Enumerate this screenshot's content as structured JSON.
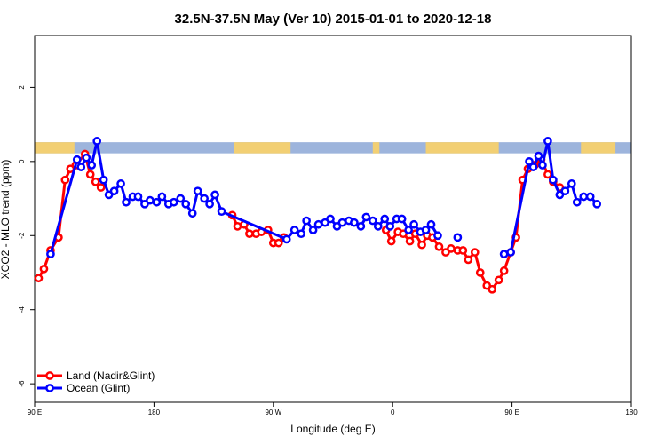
{
  "chart_data": {
    "type": "line",
    "title": "32.5N-37.5N May (Ver 10)   2015-01-01 to 2020-12-18",
    "xlabel": "Longitude (deg E)",
    "ylabel": "XCO2 - MLO trend (ppm)",
    "xlim": [
      90,
      540
    ],
    "ylim": [
      -6.5,
      3.4
    ],
    "x_ticks": [
      {
        "value": 90,
        "label": "90 E"
      },
      {
        "value": 180,
        "label": "180"
      },
      {
        "value": 270,
        "label": "90 W"
      },
      {
        "value": 360,
        "label": "0"
      },
      {
        "value": 450,
        "label": "90 E"
      },
      {
        "value": 540,
        "label": "180"
      }
    ],
    "y_ticks": [
      {
        "value": 2,
        "label": "2"
      },
      {
        "value": 0,
        "label": "0"
      },
      {
        "value": -2,
        "label": "-2"
      },
      {
        "value": -4,
        "label": "-4"
      },
      {
        "value": -6,
        "label": "-6"
      }
    ],
    "land_ocean_strip": {
      "ymin": 0.22,
      "ymax": 0.52,
      "land_color": "#f2cf73",
      "ocean_color": "#9db4dc",
      "land_segments": [
        [
          90,
          120
        ],
        [
          240,
          283
        ],
        [
          345,
          350
        ],
        [
          385,
          440
        ],
        [
          502,
          528
        ]
      ]
    },
    "legend": {
      "position": "bottom-left",
      "entries": [
        "Land (Nadir&Glint)",
        "Ocean (Glint)"
      ]
    },
    "series": [
      {
        "name": "Land (Nadir&Glint)",
        "color": "#ff0000",
        "segments": [
          [
            [
              93,
              -3.15
            ],
            [
              97,
              -2.9
            ],
            [
              102,
              -2.4
            ],
            [
              108,
              -2.05
            ],
            [
              113,
              -0.5
            ],
            [
              117,
              -0.2
            ],
            [
              121,
              -0.1
            ],
            [
              128,
              0.2
            ],
            [
              132,
              -0.35
            ],
            [
              136,
              -0.55
            ],
            [
              140,
              -0.7
            ]
          ],
          [
            [
              239,
              -1.45
            ],
            [
              243,
              -1.75
            ],
            [
              248,
              -1.7
            ],
            [
              252,
              -1.95
            ],
            [
              257,
              -1.95
            ],
            [
              261,
              -1.9
            ],
            [
              266,
              -1.85
            ],
            [
              270,
              -2.2
            ],
            [
              274,
              -2.2
            ],
            [
              278,
              -2.05
            ]
          ],
          [
            [
              355,
              -1.85
            ],
            [
              359,
              -2.15
            ],
            [
              364,
              -1.9
            ],
            [
              368,
              -1.95
            ],
            [
              373,
              -2.15
            ],
            [
              377,
              -1.95
            ],
            [
              382,
              -2.25
            ],
            [
              386,
              -2.0
            ],
            [
              390,
              -2.05
            ],
            [
              395,
              -2.3
            ],
            [
              400,
              -2.45
            ],
            [
              404,
              -2.35
            ],
            [
              409,
              -2.4
            ],
            [
              413,
              -2.4
            ],
            [
              417,
              -2.65
            ],
            [
              422,
              -2.45
            ],
            [
              426,
              -3.0
            ],
            [
              431,
              -3.35
            ],
            [
              435,
              -3.45
            ],
            [
              440,
              -3.2
            ],
            [
              444,
              -2.95
            ],
            [
              449,
              -2.45
            ],
            [
              453,
              -2.05
            ],
            [
              458,
              -0.5
            ],
            [
              462,
              -0.2
            ],
            [
              467,
              -0.1
            ],
            [
              472,
              0.05
            ],
            [
              477,
              -0.35
            ],
            [
              481,
              -0.55
            ],
            [
              486,
              -0.7
            ]
          ]
        ]
      },
      {
        "name": "Ocean (Glint)",
        "color": "#0000ff",
        "segments": [
          [
            [
              102,
              -2.5
            ],
            [
              122,
              0.05
            ],
            [
              125,
              -0.15
            ],
            [
              129,
              0.1
            ],
            [
              133,
              -0.1
            ],
            [
              137,
              0.55
            ],
            [
              142,
              -0.5
            ],
            [
              146,
              -0.9
            ],
            [
              150,
              -0.8
            ],
            [
              155,
              -0.6
            ],
            [
              159,
              -1.1
            ],
            [
              164,
              -0.95
            ],
            [
              168,
              -0.95
            ],
            [
              173,
              -1.15
            ],
            [
              177,
              -1.05
            ],
            [
              182,
              -1.1
            ],
            [
              186,
              -0.95
            ],
            [
              191,
              -1.15
            ],
            [
              195,
              -1.1
            ],
            [
              200,
              -1.0
            ],
            [
              204,
              -1.15
            ],
            [
              209,
              -1.4
            ],
            [
              213,
              -0.8
            ],
            [
              218,
              -1.0
            ],
            [
              222,
              -1.15
            ],
            [
              226,
              -0.9
            ],
            [
              231,
              -1.35
            ],
            [
              280,
              -2.1
            ],
            [
              286,
              -1.85
            ],
            [
              291,
              -1.95
            ],
            [
              295,
              -1.6
            ],
            [
              300,
              -1.85
            ],
            [
              304,
              -1.7
            ],
            [
              309,
              -1.65
            ],
            [
              313,
              -1.55
            ],
            [
              318,
              -1.75
            ],
            [
              322,
              -1.65
            ],
            [
              327,
              -1.6
            ],
            [
              331,
              -1.65
            ],
            [
              336,
              -1.75
            ],
            [
              340,
              -1.5
            ],
            [
              345,
              -1.6
            ],
            [
              349,
              -1.75
            ],
            [
              354,
              -1.55
            ],
            [
              358,
              -1.75
            ],
            [
              363,
              -1.55
            ],
            [
              367,
              -1.55
            ],
            [
              372,
              -1.85
            ],
            [
              376,
              -1.7
            ],
            [
              381,
              -1.9
            ],
            [
              385,
              -1.85
            ],
            [
              389,
              -1.7
            ],
            [
              394,
              -2.0
            ]
          ],
          [
            [
              409,
              -2.05
            ]
          ],
          [
            [
              444,
              -2.5
            ],
            [
              449,
              -2.45
            ],
            [
              463,
              0.0
            ],
            [
              466,
              -0.15
            ],
            [
              470,
              0.15
            ],
            [
              473,
              -0.1
            ],
            [
              477,
              0.55
            ],
            [
              481,
              -0.5
            ],
            [
              486,
              -0.9
            ],
            [
              490,
              -0.8
            ],
            [
              495,
              -0.6
            ],
            [
              499,
              -1.1
            ],
            [
              504,
              -0.95
            ],
            [
              509,
              -0.95
            ],
            [
              514,
              -1.15
            ]
          ]
        ]
      }
    ]
  }
}
